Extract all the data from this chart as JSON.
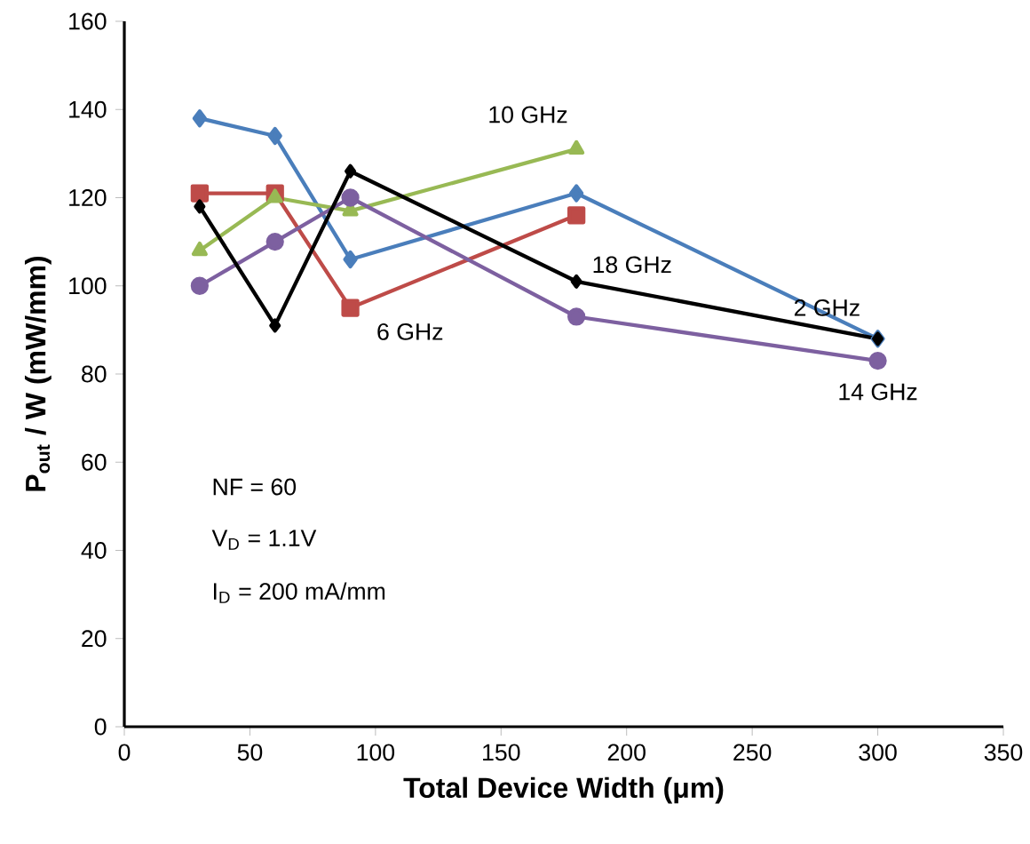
{
  "chart_data": {
    "type": "line",
    "xlabel": "Total Device Width (μm)",
    "ylabel": "P$_{out}$ / W (mW/mm)",
    "xlim": [
      0,
      350
    ],
    "xticks": [
      0,
      50,
      100,
      150,
      200,
      250,
      300,
      350
    ],
    "ylim": [
      0,
      160
    ],
    "yticks": [
      0,
      20,
      40,
      60,
      80,
      100,
      120,
      140,
      160
    ],
    "grid": false,
    "legend": false,
    "line_style": "solid",
    "x": [
      30,
      60,
      90,
      180,
      300
    ],
    "series": [
      {
        "name": "2 GHz",
        "color": "#4a7ebb",
        "marker": "diamond",
        "values": [
          138,
          134,
          106,
          121,
          88
        ]
      },
      {
        "name": "6 GHz",
        "color": "#be4b48",
        "marker": "square",
        "values": [
          121,
          121,
          95,
          116,
          null
        ]
      },
      {
        "name": "10 GHz",
        "color": "#98b954",
        "marker": "triangle",
        "values": [
          108,
          120,
          117,
          131,
          null
        ]
      },
      {
        "name": "14 GHz",
        "color": "#7d60a0",
        "marker": "circle",
        "values": [
          100,
          110,
          120,
          93,
          83
        ]
      },
      {
        "name": "18 GHz",
        "color": "#000000",
        "marker": "diamond",
        "values": [
          118,
          91,
          126,
          101,
          88
        ]
      }
    ],
    "annotations": [
      "NF = 60",
      "V$_{D}$ = 1.1V",
      "I$_{D}$ = 200 mA/mm"
    ]
  }
}
